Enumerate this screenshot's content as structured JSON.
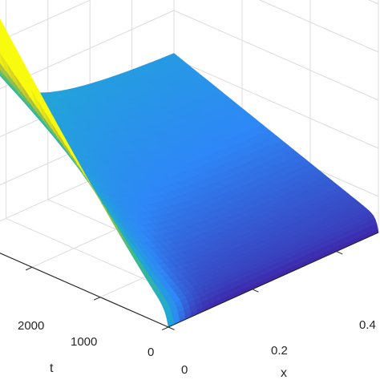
{
  "chart_data": {
    "type": "surface",
    "title": "",
    "xlabel": "x",
    "ylabel": "t",
    "zlabel": "",
    "x_ticks": [
      "0",
      "0.2",
      "0.4"
    ],
    "t_ticks": [
      "0",
      "1000",
      "2000"
    ],
    "xlim": [
      0,
      0.5
    ],
    "tlim": [
      0,
      3000
    ],
    "grid": true,
    "colormap": "parula",
    "colors": {
      "low": "#3e26a8",
      "mid": "#20a8d4",
      "high": "#f9fb0e",
      "grid": "#dcdcdc",
      "axis": "#262626"
    },
    "description_series": [
      {
        "x": 0.0,
        "t": 3000,
        "value_rel": 1.0
      },
      {
        "x": 0.0,
        "t": 0,
        "value_rel": 0.0
      },
      {
        "x": 0.5,
        "t": 3000,
        "value_rel": 0.35
      },
      {
        "x": 0.5,
        "t": 0,
        "value_rel": 0.0
      }
    ]
  }
}
